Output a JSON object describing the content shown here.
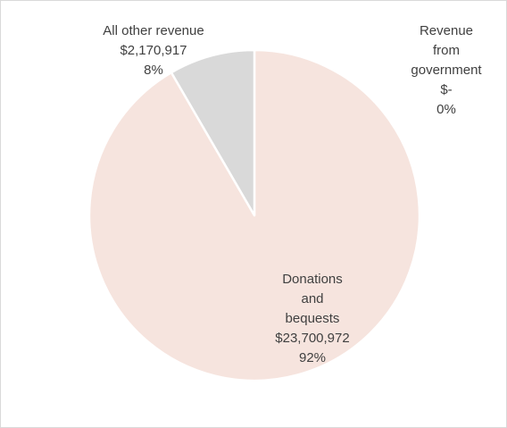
{
  "chart_data": {
    "type": "pie",
    "title": "",
    "slices": [
      {
        "category_lines": [
          "Donations",
          "and",
          "bequests"
        ],
        "value": 23700972,
        "value_label": "$23,700,972",
        "percent": 92,
        "percent_label": "92%",
        "color": "#f6e4de"
      },
      {
        "category_lines": [
          "Revenue",
          "from",
          "government"
        ],
        "value": 0,
        "value_label": "$-",
        "percent": 0,
        "percent_label": "0%",
        "color": "#f2c9b8"
      },
      {
        "category_lines": [
          "All other revenue"
        ],
        "value": 2170917,
        "value_label": "$2,170,917",
        "percent": 8,
        "percent_label": "8%",
        "color": "#d9d9d9"
      }
    ],
    "start_angle_deg": 0,
    "direction": "clockwise",
    "legend": "none"
  }
}
